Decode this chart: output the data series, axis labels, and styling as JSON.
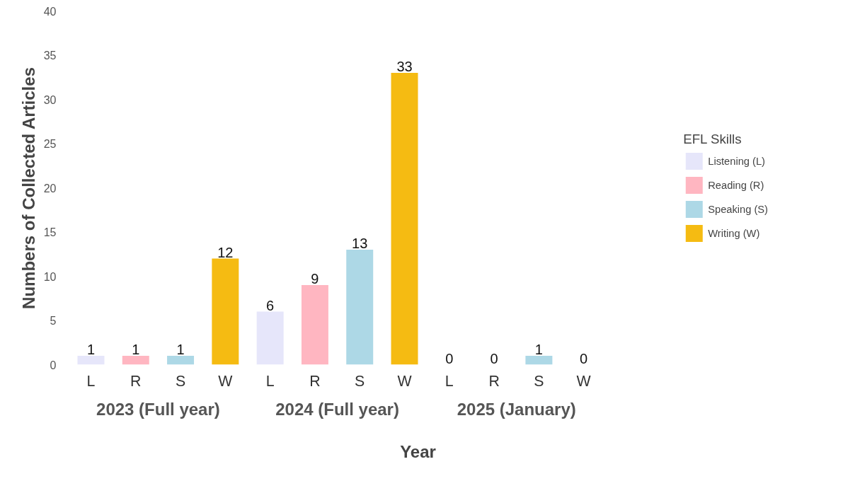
{
  "chart_data": {
    "type": "bar",
    "xlabel": "Year",
    "ylabel": "Numbers of Collected Articles",
    "legend_title": "EFL Skills",
    "categories": [
      "L",
      "R",
      "S",
      "W",
      "L",
      "R",
      "S",
      "W",
      "L",
      "R",
      "S",
      "W"
    ],
    "series": [
      {
        "name": "Listening (L)",
        "color": "#e6e6fa",
        "values": [
          1,
          null,
          null,
          null,
          6,
          null,
          null,
          null,
          0,
          null,
          null,
          null
        ]
      },
      {
        "name": "Reading (R)",
        "color": "#ffb6c1",
        "values": [
          null,
          1,
          null,
          null,
          null,
          9,
          null,
          null,
          null,
          0,
          null,
          null
        ]
      },
      {
        "name": "Speaking (S)",
        "color": "#add8e6",
        "values": [
          null,
          null,
          1,
          null,
          null,
          null,
          13,
          null,
          null,
          null,
          1,
          null
        ]
      },
      {
        "name": "Writing (W)",
        "color": "#f5bb12",
        "values": [
          null,
          null,
          null,
          12,
          null,
          null,
          null,
          33,
          null,
          null,
          null,
          0
        ]
      }
    ],
    "annotations": [
      "2023 (Full year)",
      "2024 (Full year)",
      "2025 (January)"
    ],
    "ylim": [
      0,
      40
    ],
    "yticks": [
      0,
      5,
      10,
      15,
      20,
      25,
      30,
      35,
      40
    ],
    "data_labels": true,
    "legend": "right",
    "grid": false
  }
}
